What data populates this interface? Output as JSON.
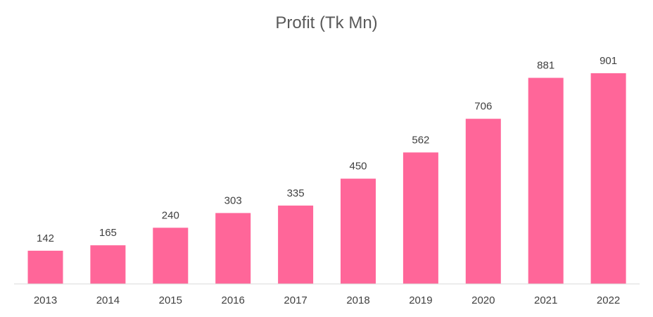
{
  "chart_data": {
    "type": "bar",
    "title": "Profit (Tk Mn)",
    "xlabel": "",
    "ylabel": "",
    "categories": [
      "2013",
      "2014",
      "2015",
      "2016",
      "2017",
      "2018",
      "2019",
      "2020",
      "2021",
      "2022"
    ],
    "values": [
      142,
      165,
      240,
      303,
      335,
      450,
      562,
      706,
      881,
      901
    ],
    "ylim": [
      0,
      1000
    ],
    "grid": false,
    "legend": "none",
    "data_labels": true,
    "colors": {
      "bar": "#FF6699",
      "axis": "#D9D9D9",
      "text": "#404040",
      "title": "#595959"
    }
  }
}
